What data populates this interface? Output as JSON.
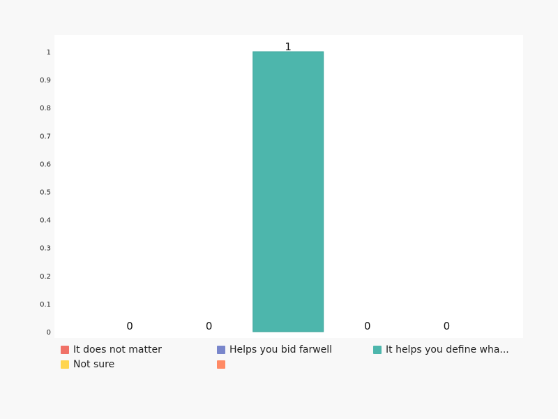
{
  "chart_data": {
    "type": "bar",
    "categories": [
      "It does not matter",
      "Helps you bid farwell",
      "It helps you define wha...",
      "Not sure",
      ""
    ],
    "values": [
      0,
      0,
      1,
      0,
      0
    ],
    "value_labels": [
      "0",
      "0",
      "1",
      "0",
      "0"
    ],
    "colors": [
      "#f07167",
      "#7986cb",
      "#4db6ac",
      "#ffd54f",
      "#ff8a65"
    ],
    "ylim": [
      0,
      1
    ],
    "yticks": [
      "0",
      "0.1",
      "0.2",
      "0.3",
      "0.4",
      "0.5",
      "0.6",
      "0.7",
      "0.8",
      "0.9",
      "1"
    ],
    "title": "",
    "xlabel": "",
    "ylabel": "",
    "legend_position": "bottom"
  },
  "legend": {
    "items": [
      {
        "label": "It does not matter",
        "color": "#f07167"
      },
      {
        "label": "Helps you bid farwell",
        "color": "#7986cb"
      },
      {
        "label": "It helps you define wha...",
        "color": "#4db6ac"
      },
      {
        "label": "Not sure",
        "color": "#ffd54f"
      },
      {
        "label": "",
        "color": "#ff8a65"
      }
    ]
  }
}
